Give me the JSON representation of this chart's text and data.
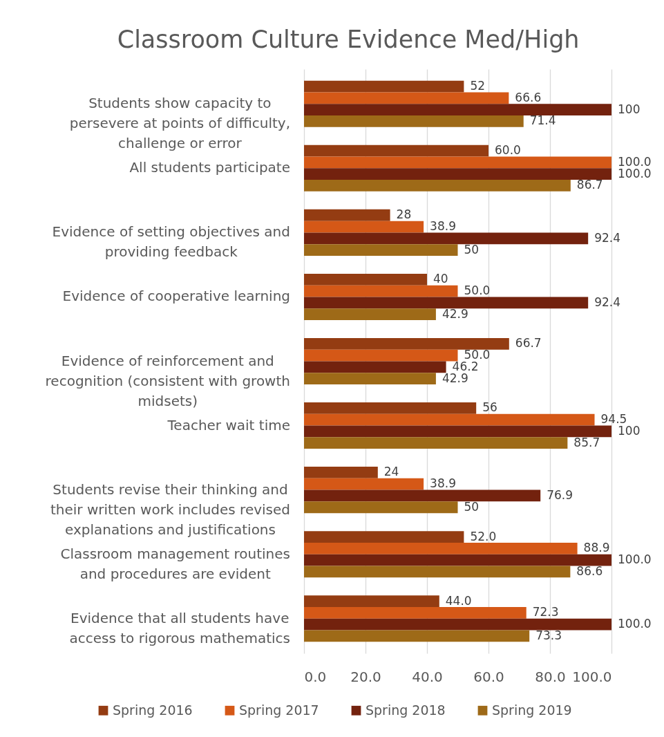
{
  "chart_data": {
    "type": "bar",
    "title": "Classroom Culture Evidence Med/High",
    "orientation": "horizontal",
    "categories": [
      "Students show capacity to persevere at points of difficulty, challenge or error",
      "All students participate",
      "Evidence of setting objectives and providing feedback",
      "Evidence of cooperative learning",
      "Evidence of reinforcement and recognition (consistent with growth midsets)",
      "Teacher wait time",
      "Students revise their thinking and their written work includes revised explanations and justifications",
      "Classroom management routines and procedures are evident",
      "Evidence that all students have access to rigorous mathematics"
    ],
    "series": [
      {
        "name": "Spring 2016",
        "color": "#943c12",
        "values": [
          52,
          60,
          28,
          40,
          66.7,
          56,
          24,
          52,
          44
        ],
        "value_labels": [
          "52",
          "60.0",
          "28",
          "40",
          "66.7",
          "56",
          "24",
          "52.0",
          "44.0"
        ]
      },
      {
        "name": "Spring 2017",
        "color": "#d55817",
        "values": [
          66.6,
          100,
          38.9,
          50,
          50,
          94.5,
          38.9,
          88.9,
          72.3
        ],
        "value_labels": [
          "66.6",
          "100.0",
          "38.9",
          "50.0",
          "50.0",
          "94.5",
          "38.9",
          "88.9",
          "72.3"
        ]
      },
      {
        "name": "Spring 2018",
        "color": "#73220e",
        "values": [
          100,
          100,
          92.4,
          92.4,
          46.2,
          100,
          76.9,
          100,
          100
        ],
        "value_labels": [
          "100",
          "100.0",
          "92.4",
          "92.4",
          "46.2",
          "100",
          "76.9",
          "100.0",
          "100.0"
        ]
      },
      {
        "name": "Spring 2019",
        "color": "#9e6a18",
        "values": [
          71.4,
          86.7,
          50,
          42.9,
          42.9,
          85.7,
          50,
          86.6,
          73.3
        ],
        "value_labels": [
          "71.4",
          "86.7",
          "50",
          "42.9",
          "42.9",
          "85.7",
          "50",
          "86.6",
          "73.3"
        ]
      }
    ],
    "xlim": [
      0,
      100
    ],
    "xticks": [
      {
        "value": 0,
        "label": "0.0"
      },
      {
        "value": 20,
        "label": "20.0"
      },
      {
        "value": 40,
        "label": "40.0"
      },
      {
        "value": 60,
        "label": "60.0"
      },
      {
        "value": 80,
        "label": "80.0"
      },
      {
        "value": 100,
        "label": "100.0"
      }
    ],
    "grid": "x",
    "legend": "bottom"
  }
}
